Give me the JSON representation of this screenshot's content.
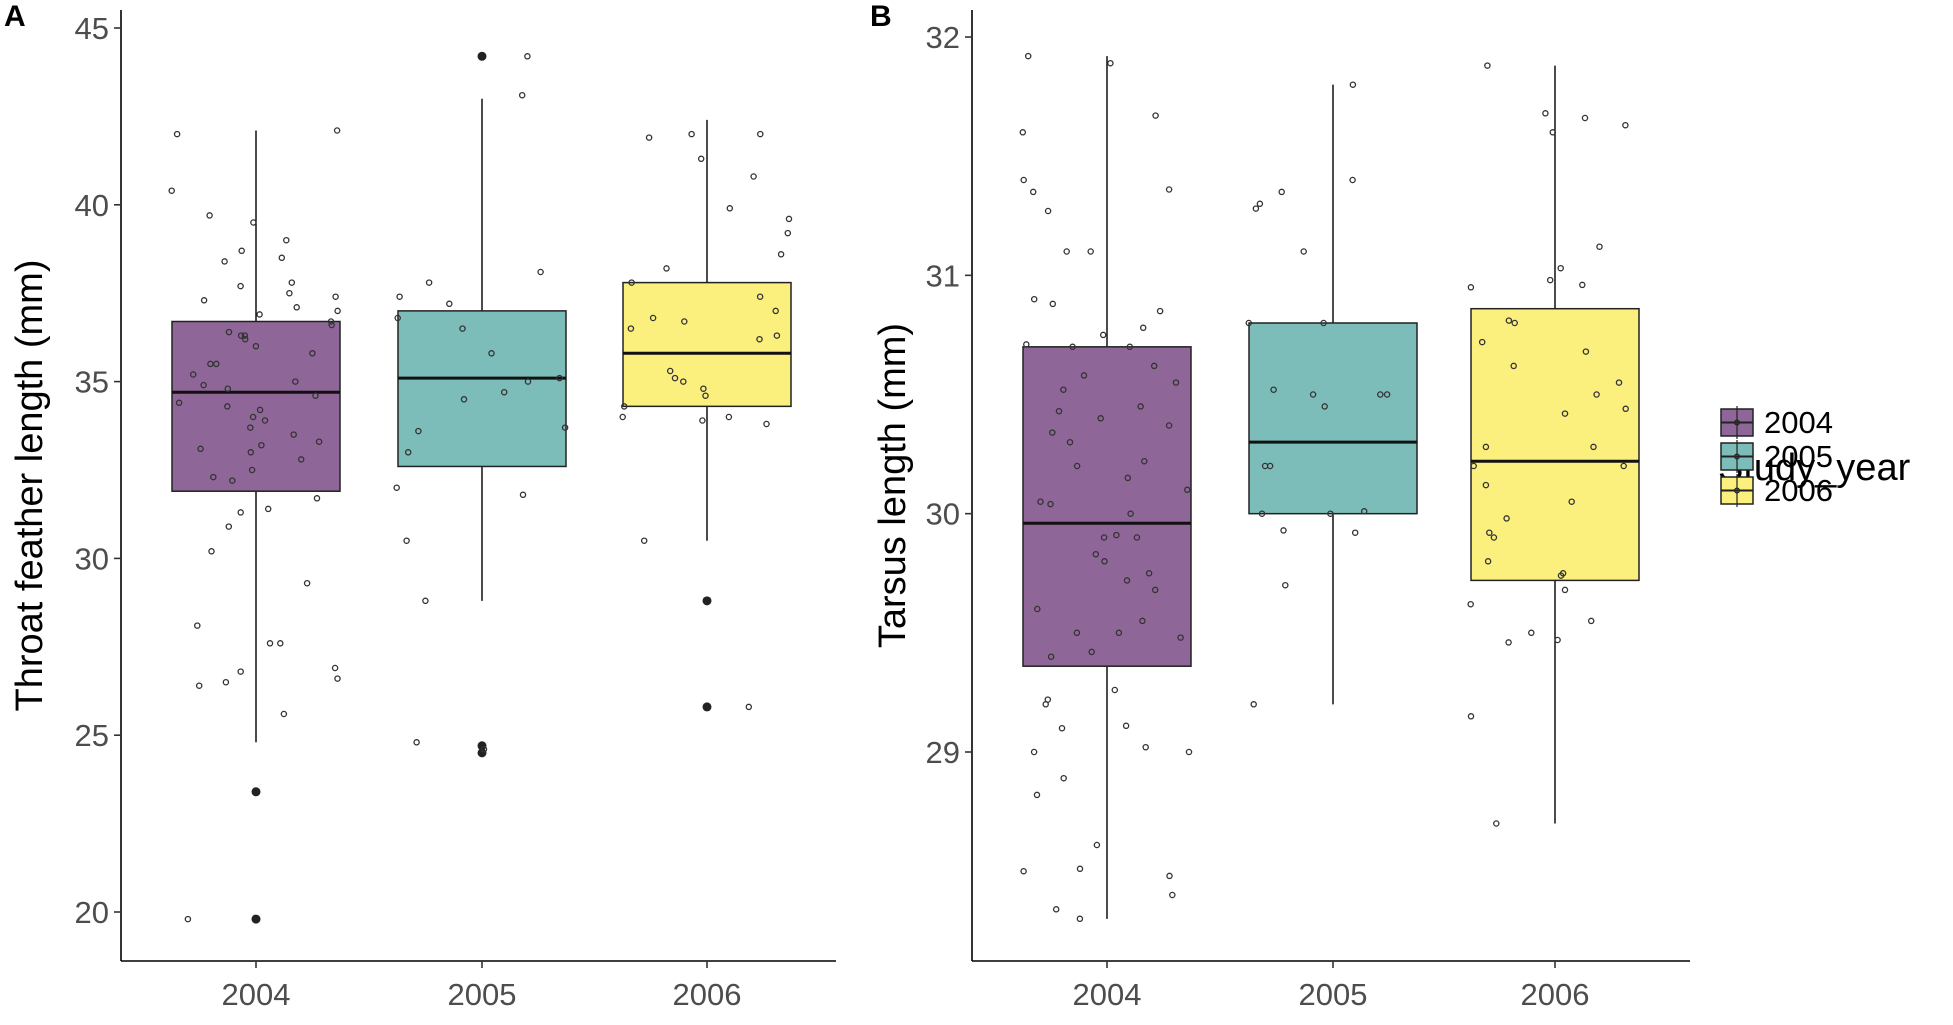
{
  "colors": {
    "2004": "#8e6698",
    "2005": "#7dbdb9",
    "2006": "#fbef7e"
  },
  "legend": {
    "title": "Study_year",
    "items": [
      "2004",
      "2005",
      "2006"
    ],
    "placement": "right"
  },
  "chart_data": [
    {
      "panel": "A",
      "type": "box",
      "xlabel": "",
      "ylabel": "Throat feather length (mm)",
      "ylim": [
        19,
        45.5
      ],
      "yticks": [
        20,
        25,
        30,
        35,
        40,
        45
      ],
      "yticklabels": [
        "20",
        "25",
        "30",
        "35",
        "40",
        "45"
      ],
      "categories": [
        "2004",
        "2005",
        "2006"
      ],
      "boxes": [
        {
          "year": "2004",
          "q1": 31.9,
          "median": 34.7,
          "q3": 36.7,
          "whisker_low": 24.8,
          "whisker_high": 42.1,
          "outliers": [
            23.4,
            19.8
          ]
        },
        {
          "year": "2005",
          "q1": 32.6,
          "median": 35.1,
          "q3": 37.0,
          "whisker_low": 28.8,
          "whisker_high": 43.0,
          "outliers": [
            44.2,
            24.7,
            24.5
          ]
        },
        {
          "year": "2006",
          "q1": 34.3,
          "median": 35.8,
          "q3": 37.8,
          "whisker_low": 30.5,
          "whisker_high": 42.4,
          "outliers": [
            28.8,
            25.8
          ]
        }
      ],
      "points": [
        {
          "year": "2004",
          "values": [
            40.4,
            38.4,
            38.7,
            37.0,
            36.3,
            34.9,
            34.4,
            33.5,
            32.3,
            31.3,
            30.2,
            26.9,
            26.8,
            25.6,
            42.1,
            38.5,
            37.3,
            36.0,
            35.2,
            34.0,
            33.1,
            32.5,
            29.3,
            28.1,
            26.4,
            39.7,
            39.5,
            36.7,
            36.4,
            35.5,
            34.8,
            33.9,
            33.3,
            31.4,
            26.5,
            42.0,
            39.0,
            37.7,
            36.6,
            35.8,
            34.6,
            33.7,
            32.8,
            27.6,
            26.6,
            37.5,
            36.2,
            35.0,
            34.2,
            33.2,
            31.7,
            36.9,
            36.3,
            35.5,
            34.3,
            33.0,
            32.2,
            37.8,
            37.4,
            37.1,
            30.9,
            27.6,
            19.8
          ]
        },
        {
          "year": "2005",
          "values": [
            36.8,
            34.5,
            38.1,
            37.8,
            35.1,
            33.7,
            24.6,
            44.2,
            37.2,
            36.5,
            33.6,
            30.5,
            28.8,
            43.1,
            34.7,
            33.0,
            32.0,
            31.8,
            37.4,
            35.8,
            24.8,
            35.0
          ]
        },
        {
          "year": "2006",
          "values": [
            34.0,
            33.9,
            38.2,
            42.0,
            41.3,
            40.8,
            39.2,
            37.4,
            36.7,
            35.0,
            34.3,
            41.9,
            38.6,
            36.2,
            35.3,
            34.6,
            42.0,
            39.6,
            36.3,
            34.0,
            37.8,
            36.5,
            35.1,
            33.8,
            39.9,
            37.0,
            36.8,
            34.8,
            30.5,
            25.8
          ]
        }
      ]
    },
    {
      "panel": "B",
      "type": "box",
      "xlabel": "",
      "ylabel": "Tarsus length (mm)",
      "ylim": [
        28.15,
        32.1
      ],
      "yticks": [
        29,
        30,
        31,
        32
      ],
      "yticklabels": [
        "29",
        "30",
        "31",
        "32"
      ],
      "categories": [
        "2004",
        "2005",
        "2006"
      ],
      "boxes": [
        {
          "year": "2004",
          "q1": 29.36,
          "median": 29.96,
          "q3": 30.7,
          "whisker_low": 28.3,
          "whisker_high": 31.92,
          "outliers": []
        },
        {
          "year": "2005",
          "q1": 30.0,
          "median": 30.3,
          "q3": 30.8,
          "whisker_low": 29.2,
          "whisker_high": 31.8,
          "outliers": []
        },
        {
          "year": "2006",
          "q1": 29.72,
          "median": 30.22,
          "q3": 30.86,
          "whisker_low": 28.7,
          "whisker_high": 31.88,
          "outliers": []
        }
      ],
      "points": [
        {
          "year": "2004",
          "values": [
            31.6,
            30.9,
            30.78,
            30.4,
            30.05,
            29.83,
            29.72,
            29.5,
            29.2,
            29.0,
            28.61,
            28.51,
            28.5,
            31.4,
            31.27,
            30.71,
            30.7,
            30.52,
            30.2,
            30.1,
            29.9,
            29.6,
            29.48,
            29.42,
            28.89,
            28.3,
            31.1,
            30.58,
            30.45,
            30.3,
            30.0,
            29.8,
            29.5,
            29.4,
            29.02,
            28.4,
            31.92,
            31.67,
            31.35,
            31.1,
            30.85,
            30.62,
            30.37,
            30.22,
            30.04,
            29.75,
            29.55,
            29.26,
            29.0,
            28.48,
            28.34,
            31.36,
            30.75,
            30.55,
            30.34,
            30.15,
            29.91,
            29.68,
            29.22,
            29.11,
            28.82,
            31.89,
            30.88,
            30.7,
            30.43,
            29.9,
            29.1
          ]
        },
        {
          "year": "2005",
          "values": [
            30.8,
            30.52,
            30.2,
            30.01,
            29.92,
            29.7,
            31.3,
            31.4,
            31.35,
            31.28,
            31.1,
            30.8,
            30.5,
            30.0,
            30.5,
            30.45,
            30.2,
            30.0,
            29.93,
            29.2,
            31.8,
            30.5
          ]
        },
        {
          "year": "2006",
          "values": [
            30.95,
            30.81,
            30.42,
            30.2,
            29.9,
            29.62,
            31.03,
            30.96,
            30.62,
            30.2,
            29.98,
            29.75,
            29.74,
            28.7,
            30.98,
            30.55,
            30.44,
            30.28,
            30.12,
            29.8,
            29.68,
            31.66,
            31.68,
            30.28,
            29.55,
            29.15,
            31.88,
            31.63,
            31.6,
            31.12,
            30.72,
            30.5,
            30.05,
            29.92,
            29.5,
            29.46,
            30.8,
            30.68,
            29.47
          ]
        }
      ]
    }
  ]
}
